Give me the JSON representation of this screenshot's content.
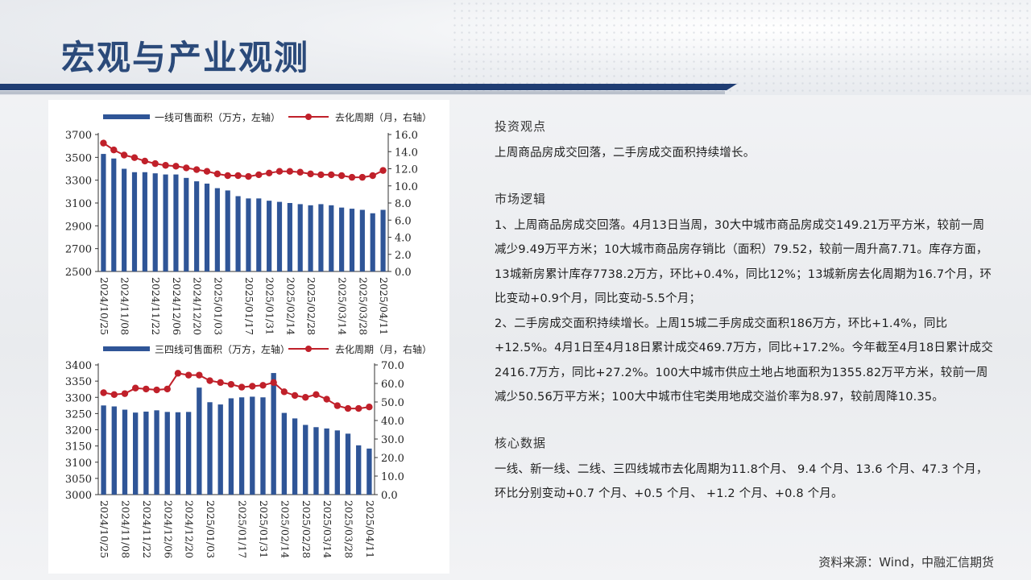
{
  "page": {
    "title": "宏观与产业观测",
    "source": "资料来源：Wind，中融汇信期货"
  },
  "right": {
    "section1_title": "投资观点",
    "section1_text": "上周商品房成交回落，二手房成交面积持续增长。",
    "section2_title": "市场逻辑",
    "section2_p1": "1、上周商品房成交回落。4月13日当周，30大中城市商品房成交149.21万平方米，较前一周减少9.49万平方米；10大城市商品房存销比（面积）79.52，较前一周升高7.71。库存方面，13城新房累计库存7738.2万方，环比+0.4%，同比12%；13城新房去化周期为16.7个月，环比变动+0.9个月，同比变动-5.5个月；",
    "section2_p2": "2、二手房成交面积持续增长。上周15城二手房成交面积186万方，环比+1.4%，同比+12.5%。4月1日至4月18日累计成交469.7万方，同比+17.2%。今年截至4月18日累计成交2416.7万方，同比+27.2%。100大中城市供应土地占地面积为1355.82万平方米，较前一周减少50.56万平方米；100大中城市住宅类用地成交溢价率为8.97，较前周降10.35。",
    "section3_title": "核心数据",
    "section3_text": "一线、新一线、二线、三四线城市去化周期为11.8个月、 9.4 个月、13.6 个月、47.3 个月，环比分别变动+0.7 个月、+0.5 个月、 +1.2 个月、+0.8 个月。"
  },
  "chart_data": [
    {
      "type": "bar+line",
      "legend": [
        "一线可售面积（万方，左轴）",
        "去化周期（月，右轴）"
      ],
      "ylim_left": [
        2500,
        3700
      ],
      "yticks_left": [
        2500,
        2700,
        2900,
        3100,
        3300,
        3500,
        3700
      ],
      "ylim_right": [
        0,
        16
      ],
      "yticks_right": [
        "0.0",
        "2.0",
        "4.0",
        "6.0",
        "8.0",
        "10.0",
        "12.0",
        "14.0",
        "16.0"
      ],
      "xtick_labels": [
        "2024/10/25",
        "2024/11/08",
        "2024/11/22",
        "2024/12/06",
        "2024/12/20",
        "2025/01/03",
        "2025/01/17",
        "2025/01/31",
        "2025/02/14",
        "2025/02/28",
        "2025/03/14",
        "2025/03/28",
        "2025/04/11"
      ],
      "bar_series": [
        3530,
        3490,
        3400,
        3370,
        3370,
        3360,
        3350,
        3350,
        3320,
        3290,
        3270,
        3230,
        3210,
        3160,
        3140,
        3140,
        3120,
        3110,
        3100,
        3090,
        3080,
        3090,
        3080,
        3060,
        3050,
        3040,
        3010,
        3040
      ],
      "line_series": [
        15.0,
        14.2,
        13.6,
        13.3,
        12.9,
        12.6,
        12.4,
        12.3,
        12.1,
        11.9,
        11.7,
        11.4,
        11.2,
        11.2,
        11.1,
        11.3,
        11.5,
        11.7,
        11.7,
        11.6,
        11.4,
        11.3,
        11.3,
        11.2,
        11.0,
        11.0,
        11.2,
        11.8
      ],
      "colors": {
        "bar": "#2f5597",
        "line": "#c0202a"
      }
    },
    {
      "type": "bar+line",
      "legend": [
        "三四线可售面积（万方，左轴）",
        "去化周期（月，右轴）"
      ],
      "ylim_left": [
        3000,
        3400
      ],
      "yticks_left": [
        3000,
        3050,
        3100,
        3150,
        3200,
        3250,
        3300,
        3350,
        3400
      ],
      "ylim_right": [
        0,
        70
      ],
      "yticks_right": [
        "0.0",
        "10.0",
        "20.0",
        "30.0",
        "40.0",
        "50.0",
        "60.0",
        "70.0"
      ],
      "xtick_labels": [
        "2024/10/25",
        "2024/11/08",
        "2024/11/22",
        "2024/12/06",
        "2024/12/20",
        "2025/01/03",
        "2025/01/17",
        "2025/01/31",
        "2025/02/14",
        "2025/02/28",
        "2025/03/14",
        "2025/03/28",
        "2025/04/11"
      ],
      "bar_series": [
        3275,
        3272,
        3262,
        3253,
        3256,
        3260,
        3255,
        3254,
        3255,
        3330,
        3285,
        3278,
        3297,
        3300,
        3302,
        3300,
        3375,
        3252,
        3235,
        3215,
        3208,
        3204,
        3198,
        3188,
        3152,
        3142
      ],
      "line_series": [
        55.0,
        54.0,
        54.5,
        57.5,
        57.0,
        56.5,
        57.0,
        65.5,
        64.5,
        64.5,
        61.5,
        60.5,
        59.5,
        58.0,
        58.5,
        59.0,
        60.5,
        55.5,
        53.5,
        52.5,
        54.0,
        51.5,
        48.0,
        46.5,
        46.5,
        47.3
      ],
      "colors": {
        "bar": "#2f5597",
        "line": "#c0202a"
      }
    }
  ]
}
